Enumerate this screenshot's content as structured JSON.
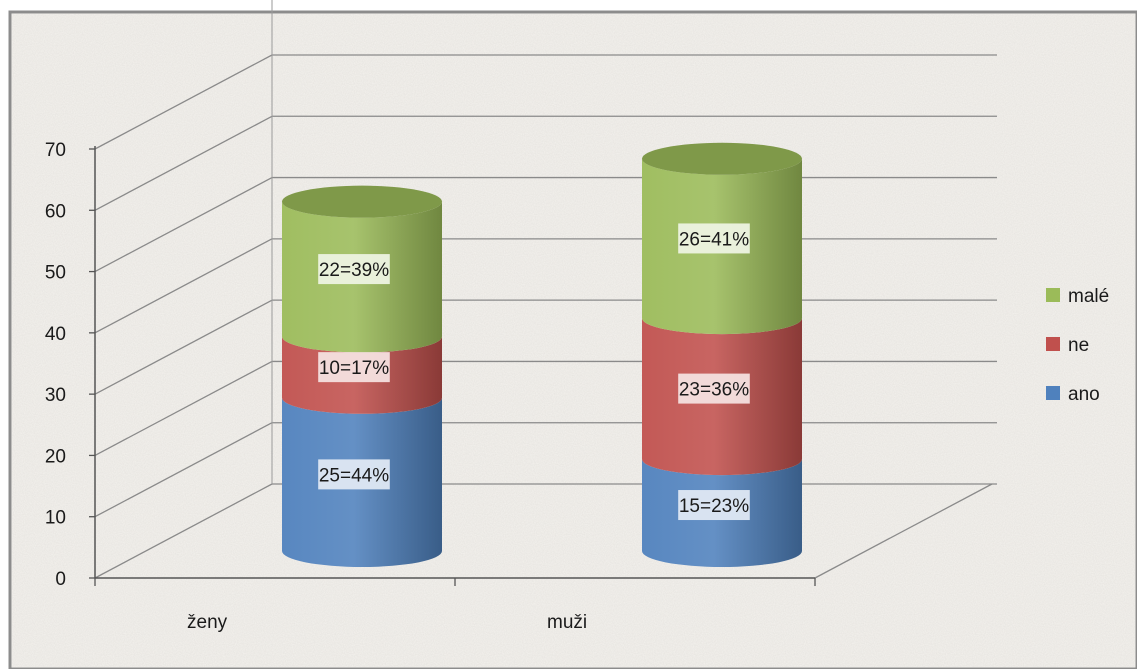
{
  "chart_data": {
    "type": "bar",
    "stacked": true,
    "style": "3d-cylinder",
    "categories": [
      "ženy",
      "muži"
    ],
    "series": [
      {
        "name": "ano",
        "values": [
          25,
          15
        ],
        "labels": [
          "25=44%",
          "15=23%"
        ],
        "color": "#4f81bd"
      },
      {
        "name": "ne",
        "values": [
          10,
          23
        ],
        "labels": [
          "10=17%",
          "23=36%"
        ],
        "color": "#c0504d"
      },
      {
        "name": "malé",
        "values": [
          22,
          26
        ],
        "labels": [
          "22=39%",
          "26=41%"
        ],
        "color": "#9bbb59"
      }
    ],
    "ylim": [
      0,
      70
    ],
    "yticks": [
      0,
      10,
      20,
      30,
      40,
      50,
      60,
      70
    ],
    "grid": true,
    "legend": "right"
  }
}
